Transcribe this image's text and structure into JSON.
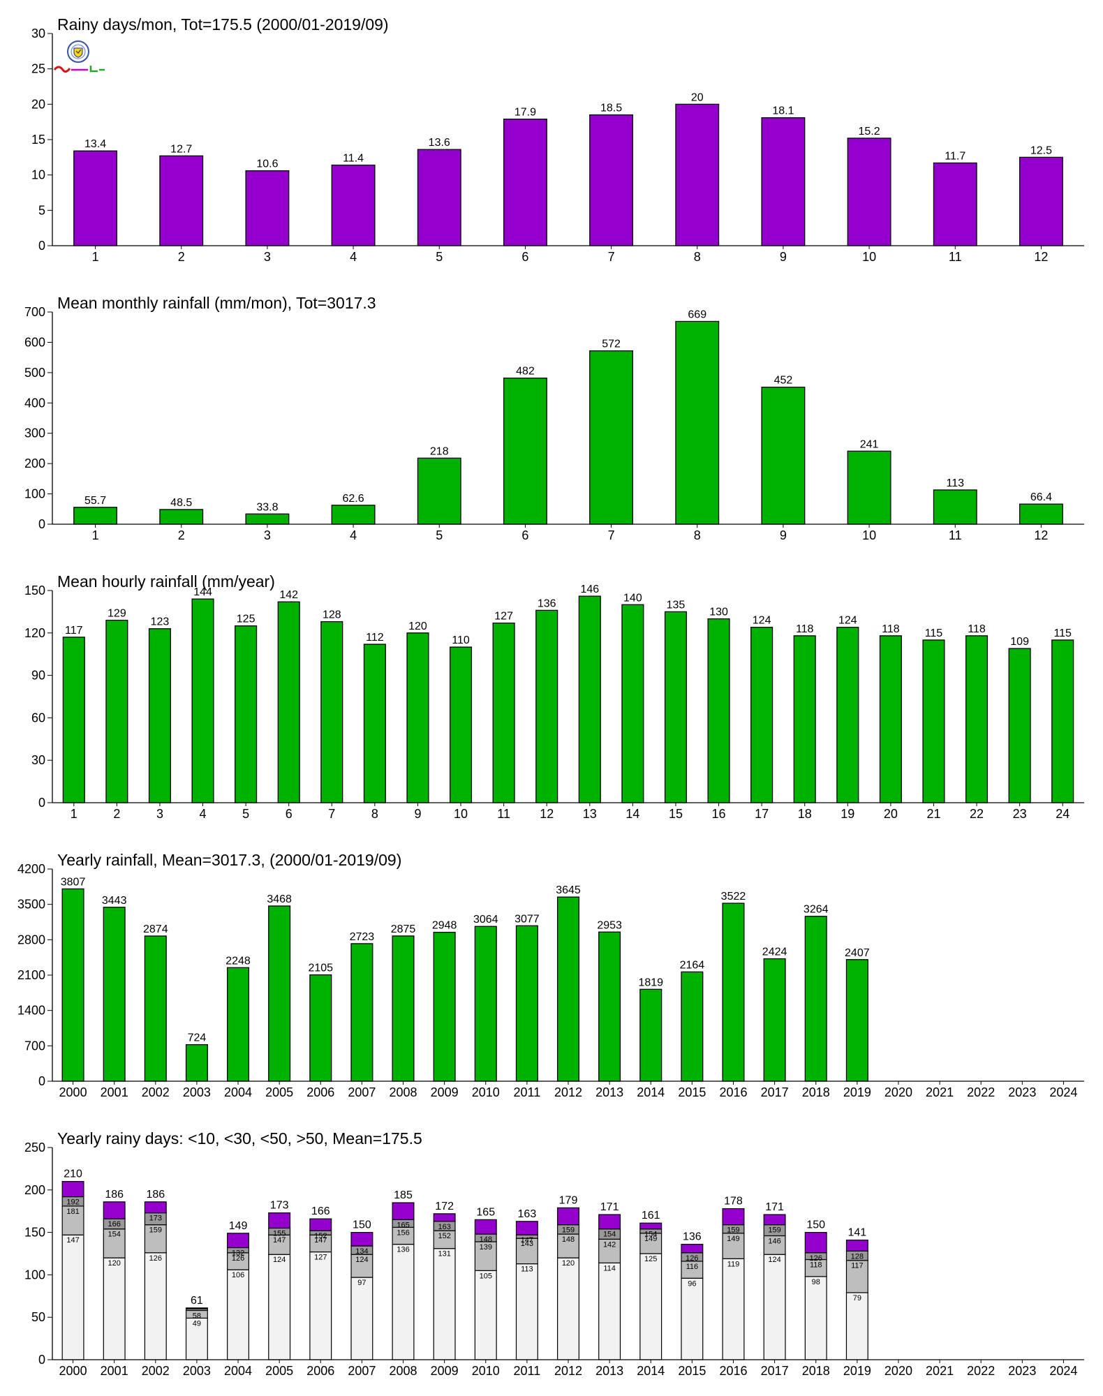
{
  "chart_data": [
    {
      "type": "bar",
      "title": "Rainy days/mon, Tot=175.5 (2000/01-2019/09)",
      "categories": [
        "1",
        "2",
        "3",
        "4",
        "5",
        "6",
        "7",
        "8",
        "9",
        "10",
        "11",
        "12"
      ],
      "values": [
        13.4,
        12.7,
        10.6,
        11.4,
        13.6,
        17.9,
        18.5,
        20,
        18.1,
        15.2,
        11.7,
        12.5
      ],
      "labels": [
        "13.4",
        "12.7",
        "10.6",
        "11.4",
        "13.6",
        "17.9",
        "18.5",
        "20",
        "18.1",
        "15.2",
        "11.7",
        "12.5"
      ],
      "ylim": [
        0,
        30
      ],
      "yticks": [
        0,
        5,
        10,
        15,
        20,
        25,
        30
      ],
      "color": "#9400cc",
      "grid": false
    },
    {
      "type": "bar",
      "title": "Mean monthly rainfall (mm/mon), Tot=3017.3",
      "categories": [
        "1",
        "2",
        "3",
        "4",
        "5",
        "6",
        "7",
        "8",
        "9",
        "10",
        "11",
        "12"
      ],
      "values": [
        55.7,
        48.5,
        33.8,
        62.6,
        218,
        482,
        572,
        669,
        452,
        241,
        113,
        66.4
      ],
      "labels": [
        "55.7",
        "48.5",
        "33.8",
        "62.6",
        "218",
        "482",
        "572",
        "669",
        "452",
        "241",
        "113",
        "66.4"
      ],
      "ylim": [
        0,
        700
      ],
      "yticks": [
        0,
        100,
        200,
        300,
        400,
        500,
        600,
        700
      ],
      "color": "#00b200",
      "grid": false
    },
    {
      "type": "bar",
      "title": "Mean hourly rainfall (mm/year)",
      "categories": [
        "1",
        "2",
        "3",
        "4",
        "5",
        "6",
        "7",
        "8",
        "9",
        "10",
        "11",
        "12",
        "13",
        "14",
        "15",
        "16",
        "17",
        "18",
        "19",
        "20",
        "21",
        "22",
        "23",
        "24"
      ],
      "values": [
        117,
        129,
        123,
        144,
        125,
        142,
        128,
        112,
        120,
        110,
        127,
        136,
        146,
        140,
        135,
        130,
        124,
        118,
        124,
        118,
        115,
        118,
        109,
        115
      ],
      "labels": [
        "117",
        "129",
        "123",
        "144",
        "125",
        "142",
        "128",
        "112",
        "120",
        "110",
        "127",
        "136",
        "146",
        "140",
        "135",
        "130",
        "124",
        "118",
        "124",
        "118",
        "115",
        "118",
        "109",
        "115"
      ],
      "ylim": [
        0,
        150
      ],
      "yticks": [
        0,
        30,
        60,
        90,
        120,
        150
      ],
      "color": "#00b200",
      "grid": false
    },
    {
      "type": "bar",
      "title": "Yearly rainfall, Mean=3017.3, (2000/01-2019/09)",
      "categories": [
        "2000",
        "2001",
        "2002",
        "2003",
        "2004",
        "2005",
        "2006",
        "2007",
        "2008",
        "2009",
        "2010",
        "2011",
        "2012",
        "2013",
        "2014",
        "2015",
        "2016",
        "2017",
        "2018",
        "2019",
        "2020",
        "2021",
        "2022",
        "2023",
        "2024"
      ],
      "values": [
        3807,
        3443,
        2874,
        724,
        2248,
        3468,
        2105,
        2723,
        2875,
        2948,
        3064,
        3077,
        3645,
        2953,
        1819,
        2164,
        3522,
        2424,
        3264,
        2407,
        null,
        null,
        null,
        null,
        null
      ],
      "labels": [
        "3807",
        "3443",
        "2874",
        "724",
        "2248",
        "3468",
        "2105",
        "2723",
        "2875",
        "2948",
        "3064",
        "3077",
        "3645",
        "2953",
        "1819",
        "2164",
        "3522",
        "2424",
        "3264",
        "2407",
        "",
        "",
        "",
        "",
        ""
      ],
      "ylim": [
        0,
        4200
      ],
      "yticks": [
        0,
        700,
        1400,
        2100,
        2800,
        3500,
        4200
      ],
      "color": "#00b200",
      "grid": false
    },
    {
      "type": "stacked_bar",
      "title": "Yearly rainy days: <10, <30, <50, >50, Mean=175.5",
      "categories": [
        "2000",
        "2001",
        "2002",
        "2003",
        "2004",
        "2005",
        "2006",
        "2007",
        "2008",
        "2009",
        "2010",
        "2011",
        "2012",
        "2013",
        "2014",
        "2015",
        "2016",
        "2017",
        "2018",
        "2019",
        "2020",
        "2021",
        "2022",
        "2023",
        "2024"
      ],
      "ylim": [
        0,
        250
      ],
      "yticks": [
        0,
        50,
        100,
        150,
        200,
        250
      ],
      "cumulative": {
        "lt10": [
          147,
          120,
          126,
          49,
          106,
          124,
          127,
          97,
          136,
          131,
          105,
          113,
          120,
          114,
          125,
          96,
          119,
          124,
          98,
          79,
          null,
          null,
          null,
          null,
          null
        ],
        "lt30": [
          181,
          154,
          159,
          58,
          126,
          147,
          147,
          124,
          156,
          152,
          139,
          143,
          148,
          142,
          149,
          116,
          149,
          146,
          118,
          117,
          null,
          null,
          null,
          null,
          null
        ],
        "lt50": [
          192,
          166,
          173,
          60,
          132,
          155,
          152,
          134,
          165,
          163,
          148,
          147,
          159,
          154,
          154,
          126,
          159,
          159,
          126,
          128,
          null,
          null,
          null,
          null,
          null
        ],
        "total": [
          210,
          186,
          186,
          61,
          149,
          173,
          166,
          150,
          185,
          172,
          165,
          163,
          179,
          171,
          161,
          136,
          178,
          171,
          150,
          141,
          null,
          null,
          null,
          null,
          null
        ]
      },
      "segment_labels": {
        "lt10": [
          "147",
          "120",
          "126",
          "49",
          "106",
          "124",
          "127",
          "97",
          "136",
          "131",
          "105",
          "113",
          "120",
          "114",
          "125",
          "96",
          "119",
          "124",
          "98",
          "79",
          "",
          "",
          "",
          "",
          ""
        ],
        "lt30": [
          "181",
          "154",
          "159",
          "58",
          "126",
          "147",
          "147",
          "124",
          "156",
          "152",
          "139",
          "143",
          "148",
          "142",
          "149",
          "116",
          "149",
          "146",
          "118",
          "117",
          "",
          "",
          "",
          "",
          ""
        ],
        "lt50": [
          "192",
          "166",
          "173",
          "",
          "132",
          "155",
          "152",
          "134",
          "165",
          "163",
          "148",
          "147",
          "159",
          "154",
          "154",
          "126",
          "159",
          "159",
          "126",
          "128",
          "",
          "",
          "",
          "",
          ""
        ],
        "total": [
          "210",
          "186",
          "186",
          "61",
          "149",
          "173",
          "166",
          "150",
          "185",
          "172",
          "165",
          "163",
          "179",
          "171",
          "161",
          "136",
          "178",
          "171",
          "150",
          "141",
          "",
          "",
          "",
          "",
          ""
        ]
      },
      "colors": {
        "lt10": "#f2f2f2",
        "lt30": "#bebebe",
        "lt50": "#999999",
        "total": "#9400cc"
      },
      "grid": false
    }
  ]
}
